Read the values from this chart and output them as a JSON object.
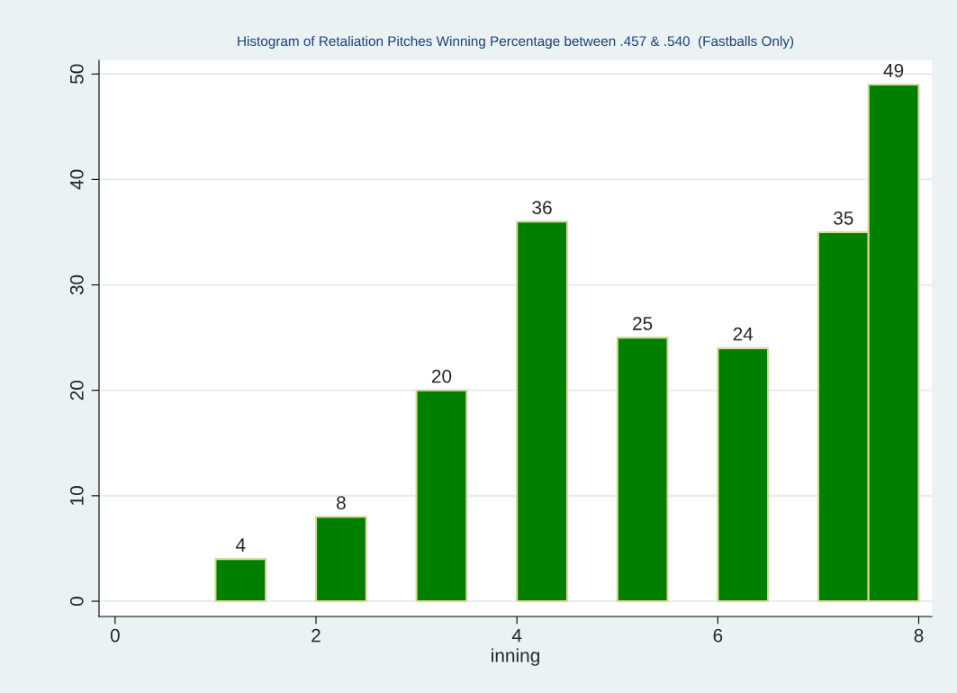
{
  "chart_data": {
    "type": "histogram",
    "title": "Histogram of Retaliation Pitches Winning Percentage between .457 & .540  (Fastballs Only)",
    "xlabel": "inning",
    "bins": [
      0,
      0.5,
      1,
      1.5,
      2,
      2.5,
      3,
      3.5,
      4,
      4.5,
      5,
      5.5,
      6,
      6.5,
      7,
      7.5,
      8
    ],
    "values": [
      0,
      0,
      4,
      0,
      8,
      0,
      20,
      0,
      36,
      0,
      25,
      0,
      24,
      0,
      35,
      49
    ],
    "value_labels": [
      null,
      null,
      "4",
      null,
      "8",
      null,
      "20",
      null,
      "36",
      null,
      "25",
      null,
      "24",
      null,
      "35",
      "49"
    ],
    "color": "#008000",
    "xlim": [
      -0.16,
      8.13
    ],
    "xticks": [
      0,
      2,
      4,
      6,
      8
    ],
    "ylim": [
      -1.45,
      51.3
    ],
    "yticks": [
      0,
      10,
      20,
      30,
      40,
      50
    ],
    "grid": "y"
  }
}
